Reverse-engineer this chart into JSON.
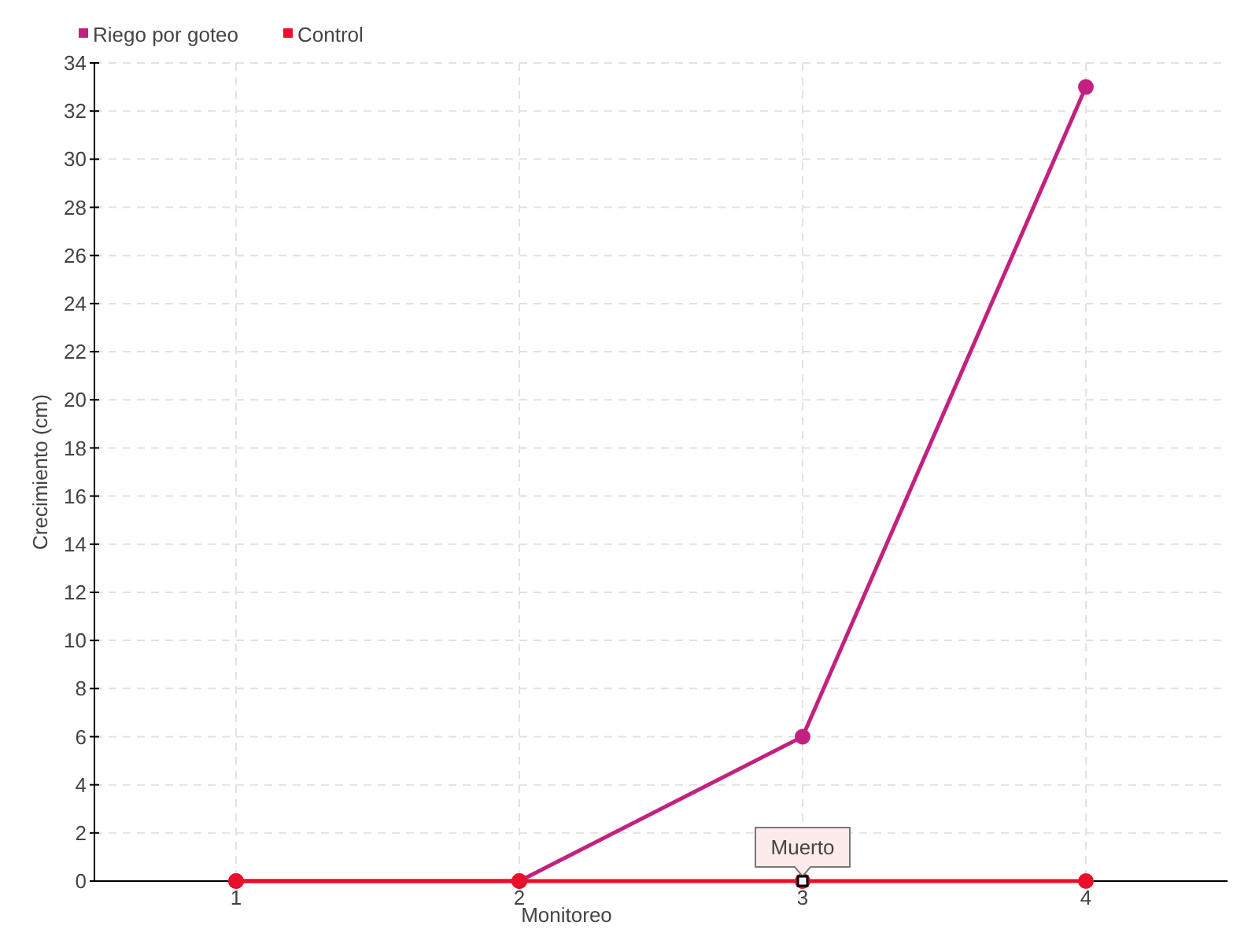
{
  "chart_data": {
    "type": "line",
    "xlabel": "Monitoreo",
    "ylabel": "Crecimiento (cm)",
    "categories": [
      "1",
      "2",
      "3",
      "4"
    ],
    "series": [
      {
        "name": "Riego por goteo",
        "color": "#c2227f",
        "values": [
          0,
          0,
          6,
          33
        ]
      },
      {
        "name": "Control",
        "color": "#e8102a",
        "values": [
          0,
          0,
          0,
          0
        ]
      }
    ],
    "ylim": [
      0,
      34
    ],
    "yticks": [
      0,
      2,
      4,
      6,
      8,
      10,
      12,
      14,
      16,
      18,
      20,
      22,
      24,
      26,
      28,
      30,
      32,
      34
    ],
    "grid": true,
    "legend": "top left",
    "marker": "circle",
    "line_style": "solid",
    "annotations": [
      {
        "text": "Muerto",
        "x": "3",
        "y": 0
      }
    ]
  }
}
